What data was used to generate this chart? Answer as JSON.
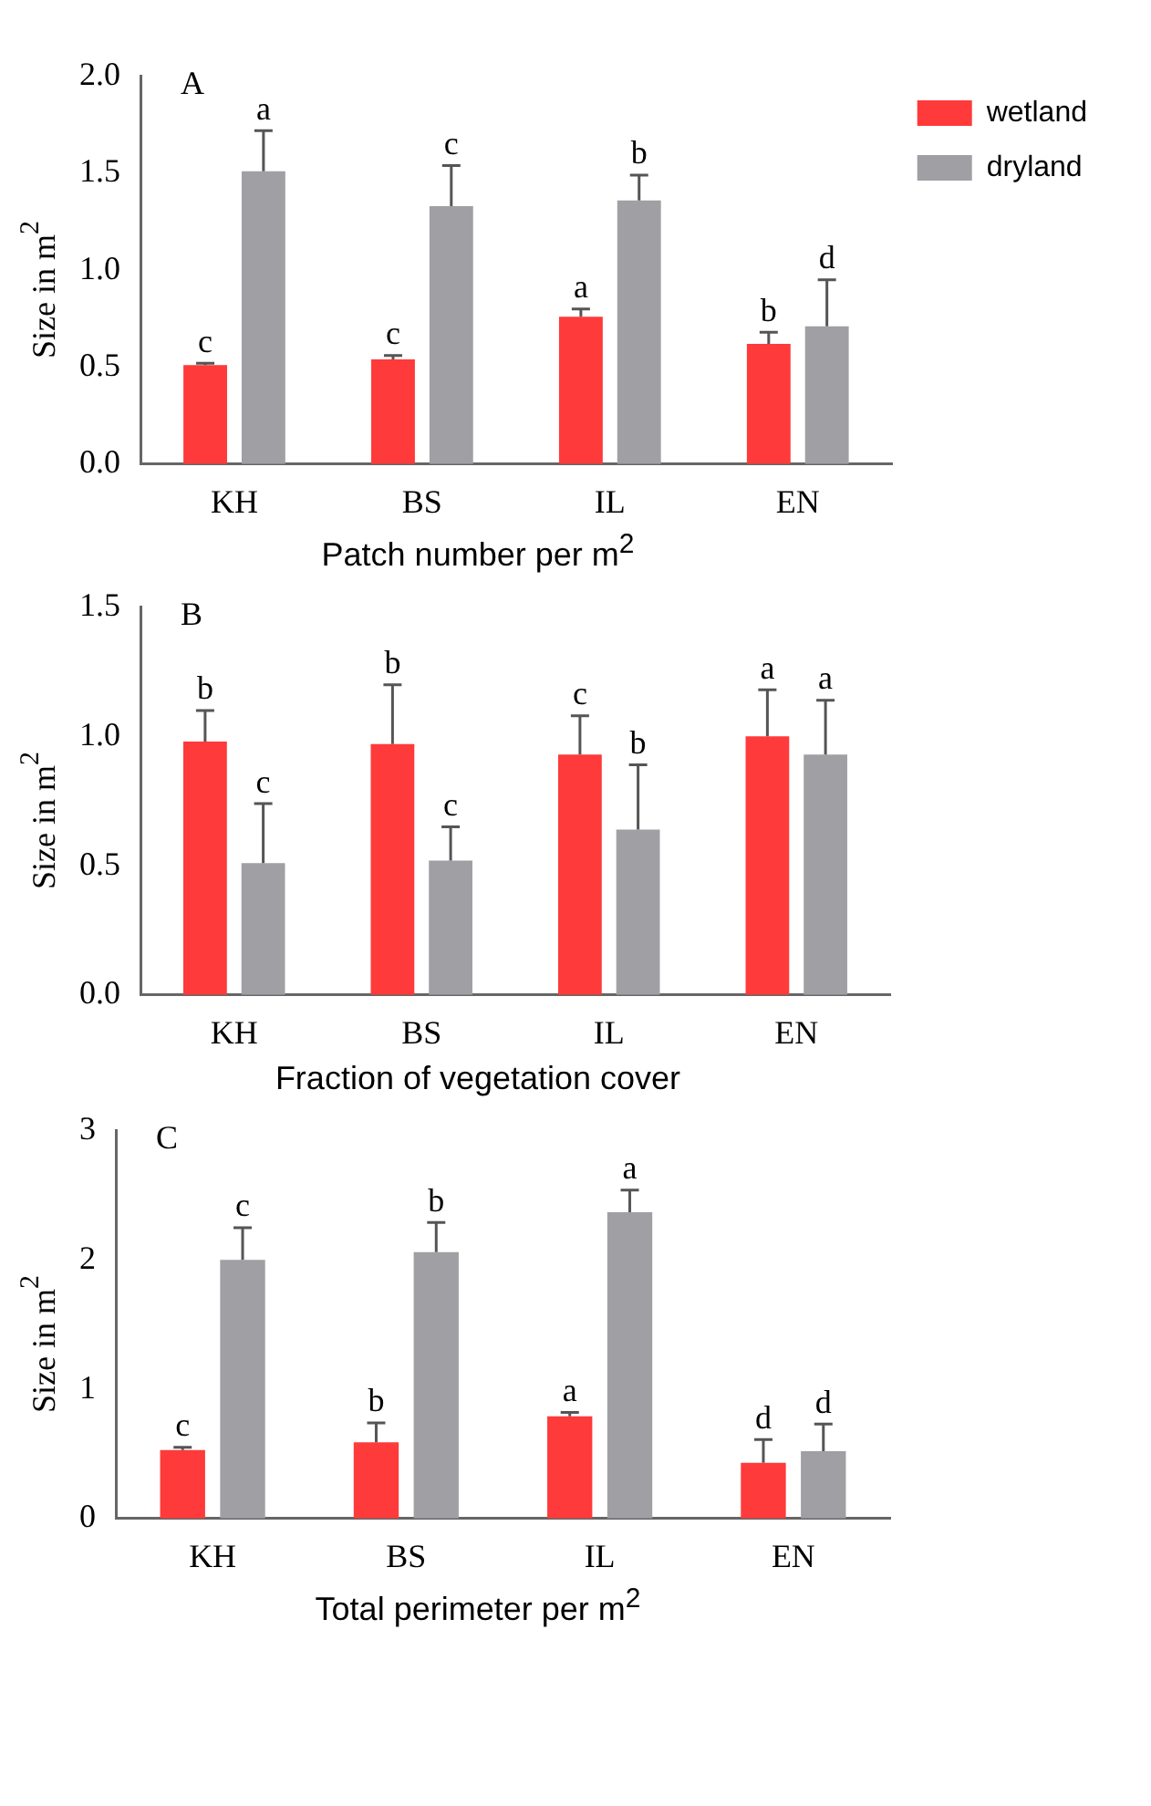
{
  "chart_data": [
    {
      "type": "bar",
      "title": "A",
      "xlabel": "Patch number per m$^{2}$",
      "ylabel": "Size in m$^{2}$",
      "categories": [
        "KH",
        "BS",
        "IL",
        "EN"
      ],
      "series": [
        {
          "name": "wetland",
          "color": "#fe3a3a",
          "values": [
            0.51,
            0.54,
            0.76,
            0.62
          ],
          "errors": [
            0.01,
            0.02,
            0.04,
            0.06
          ],
          "value_labels": [
            "c",
            "c",
            "a",
            "b"
          ]
        },
        {
          "name": "dryland",
          "color": "#a09fa4",
          "values": [
            1.51,
            1.33,
            1.36,
            0.71
          ],
          "errors": [
            0.21,
            0.21,
            0.13,
            0.24
          ],
          "value_labels": [
            "a",
            "c",
            "b",
            "d"
          ]
        }
      ],
      "ylim": [
        0,
        2
      ],
      "yticks": [
        {
          "value": 0,
          "label": "0.0"
        },
        {
          "value": 0.5,
          "label": "0.5"
        },
        {
          "value": 1,
          "label": "1.0"
        },
        {
          "value": 1.5,
          "label": "1.5"
        },
        {
          "value": 2,
          "label": "2.0"
        }
      ],
      "grid": false,
      "legend": "top right"
    },
    {
      "type": "bar",
      "title": "B",
      "xlabel": "Fraction of vegetation cover",
      "ylabel": "Size in m$^{2}$",
      "categories": [
        "KH",
        "BS",
        "IL",
        "EN"
      ],
      "series": [
        {
          "color": "#fe3a3a",
          "values": [
            0.98,
            0.97,
            0.93,
            1.0
          ],
          "errors": [
            0.12,
            0.23,
            0.15,
            0.18
          ],
          "value_labels": [
            "b",
            "b",
            "c",
            "a"
          ]
        },
        {
          "color": "#a09fa4",
          "values": [
            0.51,
            0.52,
            0.64,
            0.93
          ],
          "errors": [
            0.23,
            0.13,
            0.25,
            0.21
          ],
          "value_labels": [
            "c",
            "c",
            "b",
            "a"
          ]
        }
      ],
      "ylim": [
        0,
        1.5
      ],
      "yticks": [
        {
          "value": 0,
          "label": "0.0"
        },
        {
          "value": 0.5,
          "label": "0.5"
        },
        {
          "value": 1,
          "label": "1.0"
        },
        {
          "value": 1.5,
          "label": "1.5"
        }
      ],
      "grid": false
    },
    {
      "type": "bar",
      "title": "C",
      "xlabel": "Total perimeter per m$^{2}$",
      "ylabel": "Size in m$^{2}$",
      "categories": [
        "KH",
        "BS",
        "IL",
        "EN"
      ],
      "series": [
        {
          "color": "#fe3a3a",
          "values": [
            0.53,
            0.59,
            0.79,
            0.43
          ],
          "errors": [
            0.02,
            0.15,
            0.03,
            0.18
          ],
          "value_labels": [
            "c",
            "b",
            "a",
            "d"
          ]
        },
        {
          "color": "#a09fa4",
          "values": [
            2.0,
            2.06,
            2.37,
            0.52
          ],
          "errors": [
            0.25,
            0.23,
            0.17,
            0.21
          ],
          "value_labels": [
            "c",
            "b",
            "a",
            "d"
          ]
        }
      ],
      "ylim": [
        0,
        3
      ],
      "yticks": [
        0,
        1,
        2,
        3
      ],
      "grid": false
    }
  ]
}
